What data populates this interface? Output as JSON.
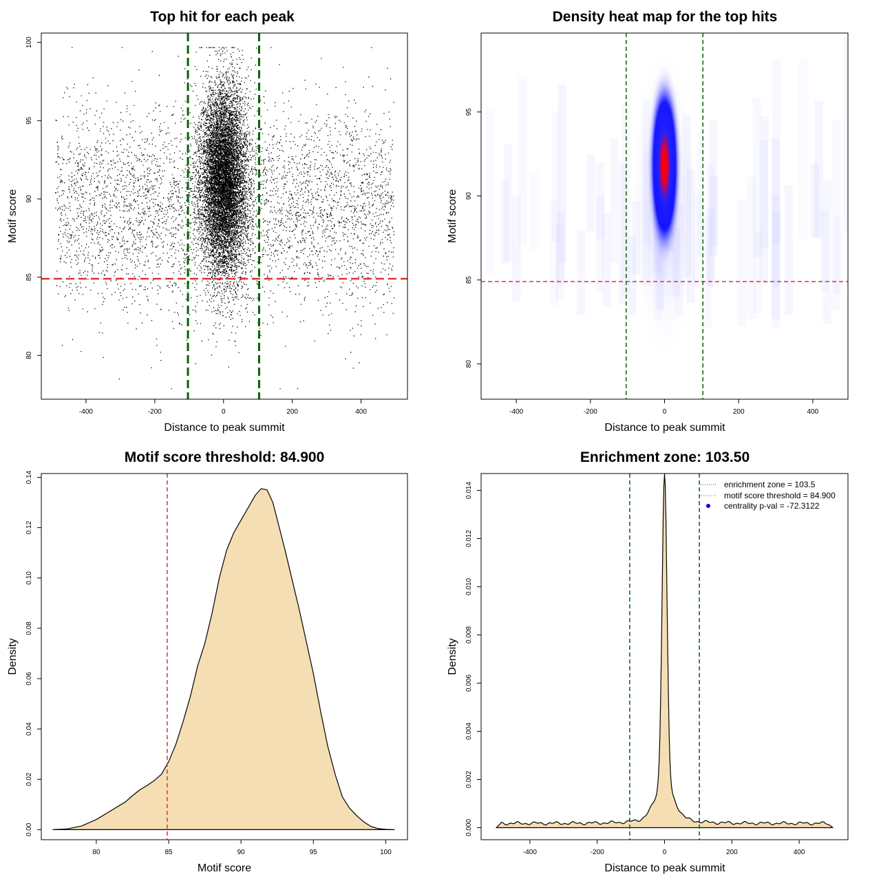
{
  "colors": {
    "threshold_red": "#e03030",
    "zone_green": "#006400",
    "density_fill": "#f5deb3",
    "heat_low": "#ffffff",
    "heat_mid": "#0000ff",
    "heat_high": "#ff0000",
    "centrality_point": "#0000ff"
  },
  "chart_data": [
    {
      "type": "scatter",
      "title": "Top hit for each peak",
      "xlabel": "Distance to peak summit",
      "ylabel": "Motif score",
      "xlim": [
        -530,
        535
      ],
      "ylim": [
        77.2,
        100.6
      ],
      "xticks": [
        -400,
        -200,
        0,
        200,
        400
      ],
      "yticks": [
        80,
        85,
        90,
        95,
        100
      ],
      "xtick_labels": [
        "-400",
        "-200",
        "0",
        "200",
        "400"
      ],
      "ytick_labels": [
        "80",
        "85",
        "90",
        "95",
        "100"
      ],
      "hline": 84.9,
      "vlines": [
        -103.5,
        103.5
      ],
      "point_generation": {
        "background": {
          "count": 4200,
          "x_range": [
            -490,
            495
          ],
          "score_mean": 89.5,
          "score_sd": 3.2
        },
        "central": {
          "count": 9000,
          "x_sd": 33,
          "score_mean": 91.2,
          "score_sd": 3.0
        },
        "score_range": [
          77.9,
          99.7
        ]
      }
    },
    {
      "type": "heatmap",
      "title": "Density heat map for the top hits",
      "xlabel": "Distance to peak summit",
      "ylabel": "Motif score",
      "xlim": [
        -495,
        495
      ],
      "ylim": [
        77.9,
        99.7
      ],
      "xticks": [
        -400,
        -200,
        0,
        200,
        400
      ],
      "yticks": [
        80,
        85,
        90,
        95
      ],
      "xtick_labels": [
        "-400",
        "-200",
        "0",
        "200",
        "400"
      ],
      "ytick_labels": [
        "80",
        "85",
        "90",
        "95"
      ],
      "hline": 84.9,
      "vlines": [
        -103.5,
        103.5
      ],
      "peak": {
        "x": 0,
        "score": 91.8
      }
    },
    {
      "type": "area",
      "title": "Motif score threshold: 84.900",
      "xlabel": "Motif score",
      "ylabel": "Density",
      "xlim": [
        76.2,
        101.5
      ],
      "ylim": [
        -0.004,
        0.1415
      ],
      "xticks": [
        80,
        85,
        90,
        95,
        100
      ],
      "yticks": [
        0.0,
        0.02,
        0.04,
        0.06,
        0.08,
        0.1,
        0.12,
        0.14
      ],
      "xtick_labels": [
        "80",
        "85",
        "90",
        "95",
        "100"
      ],
      "ytick_labels": [
        "0.00",
        "0.02",
        "0.04",
        "0.06",
        "0.08",
        "0.10",
        "0.12",
        "0.14"
      ],
      "vline": 84.9,
      "x": [
        77.0,
        78.0,
        79.0,
        80.0,
        81.0,
        82.0,
        82.5,
        83.0,
        83.5,
        84.0,
        84.5,
        85.0,
        85.5,
        86.0,
        86.5,
        87.0,
        87.5,
        88.0,
        88.5,
        89.0,
        89.5,
        90.0,
        90.5,
        91.0,
        91.4,
        91.8,
        92.2,
        92.6,
        93.0,
        93.5,
        94.0,
        94.5,
        95.0,
        95.5,
        96.0,
        96.5,
        97.0,
        97.5,
        98.0,
        98.5,
        99.0,
        99.5,
        100.0,
        100.6
      ],
      "y": [
        0.0,
        0.0003,
        0.0015,
        0.004,
        0.0075,
        0.011,
        0.0135,
        0.0158,
        0.0175,
        0.0195,
        0.022,
        0.027,
        0.034,
        0.043,
        0.053,
        0.065,
        0.074,
        0.086,
        0.1,
        0.111,
        0.118,
        0.123,
        0.128,
        0.133,
        0.1355,
        0.135,
        0.13,
        0.121,
        0.112,
        0.1,
        0.088,
        0.075,
        0.062,
        0.047,
        0.033,
        0.022,
        0.013,
        0.0085,
        0.0055,
        0.003,
        0.0012,
        0.0004,
        0.0001,
        0.0
      ]
    },
    {
      "type": "area",
      "title": "Enrichment zone: 103.50",
      "xlabel": "Distance to peak summit",
      "ylabel": "Density",
      "xlim": [
        -545,
        545
      ],
      "ylim": [
        -0.0005,
        0.0147
      ],
      "xticks": [
        -400,
        -200,
        0,
        200,
        400
      ],
      "yticks": [
        0.0,
        0.002,
        0.004,
        0.006,
        0.008,
        0.01,
        0.012,
        0.014
      ],
      "xtick_labels": [
        "-400",
        "-200",
        "0",
        "200",
        "400"
      ],
      "ytick_labels": [
        "0.000",
        "0.002",
        "0.004",
        "0.006",
        "0.008",
        "0.010",
        "0.012",
        "0.014"
      ],
      "vlines": [
        -103.5,
        103.5
      ],
      "density_model": {
        "x_range": [
          -500,
          500
        ],
        "baseline": 0.00018,
        "peak_height": 0.0141,
        "peak_core_sd": 8,
        "shoulder_sd": 28,
        "shoulder_weight": 0.09
      },
      "legend": [
        {
          "label": "enrichment zone = 103.5",
          "style": "dotted-green"
        },
        {
          "label": "motif score threshold = 84.900",
          "style": "dotted-red"
        },
        {
          "label": "centrality p-val = -72.3122",
          "style": "blue-point"
        }
      ]
    }
  ]
}
